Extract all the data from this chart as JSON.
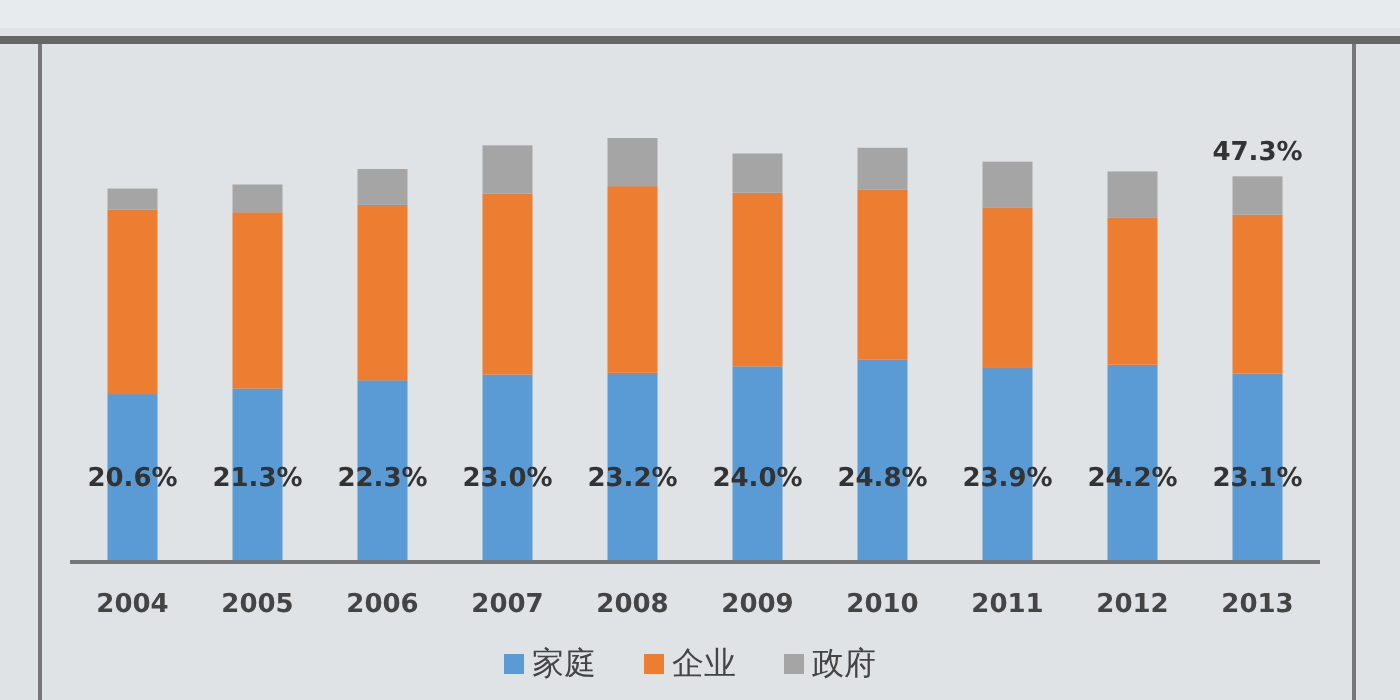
{
  "chart_data": {
    "type": "bar",
    "stacked": true,
    "legend": "bottom",
    "categories": [
      "2004",
      "2005",
      "2006",
      "2007",
      "2008",
      "2009",
      "2010",
      "2011",
      "2012",
      "2013"
    ],
    "series": [
      {
        "name": "家庭",
        "color": "#5b9bd5",
        "values": [
          20.6,
          21.3,
          22.3,
          23.0,
          23.2,
          24.0,
          24.8,
          23.9,
          24.2,
          23.1
        ],
        "value_labels": [
          "20.6%",
          "21.3%",
          "22.3%",
          "23.0%",
          "23.2%",
          "24.0%",
          "24.8%",
          "23.9%",
          "24.2%",
          "23.1%"
        ]
      },
      {
        "name": "企业",
        "color": "#ed7d31",
        "values": [
          22.6,
          21.6,
          21.5,
          22.2,
          22.9,
          21.3,
          20.9,
          19.6,
          18.0,
          19.5
        ]
      },
      {
        "name": "政府",
        "color": "#a5a5a5",
        "values": [
          2.6,
          3.4,
          4.4,
          5.9,
          5.9,
          4.8,
          5.1,
          5.6,
          5.7,
          4.7
        ]
      }
    ],
    "totals": [
      null,
      null,
      null,
      null,
      null,
      null,
      null,
      null,
      null,
      "47.3%"
    ]
  }
}
